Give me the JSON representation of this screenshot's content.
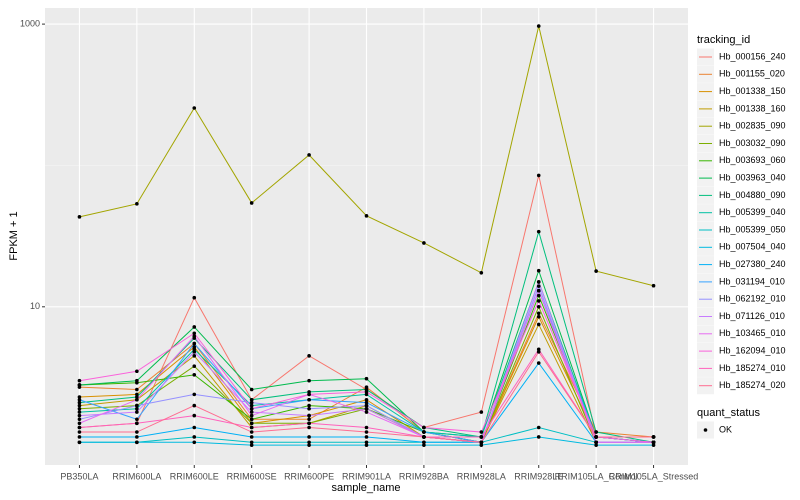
{
  "chart_data": {
    "type": "line",
    "x_label": "sample_name",
    "y_label": "FPKM + 1",
    "categories": [
      "PB350LA",
      "RRIM600LA",
      "RRIM600LE",
      "RRIM600SE",
      "RRIM600PE",
      "RRIM901LA",
      "RRIM928BA",
      "RRIM928LA",
      "RRIM928LE",
      "RRIM105LA_Control",
      "RRIM105LA_Stressed"
    ],
    "log_scale": true,
    "ylim": [
      0.76,
      1300
    ],
    "yticks": [
      10,
      1000
    ],
    "grid": true,
    "background": "#ebebeb",
    "point_color": "#000000",
    "legend_title": "tracking_id",
    "legend_position": "right",
    "point_legend": {
      "title": "quant_status",
      "labels": [
        "OK"
      ]
    },
    "series": [
      {
        "name": "Hb_000156_240",
        "color": "#F8766D",
        "values": [
          1.4,
          1.5,
          11.6,
          2.2,
          4.5,
          2.6,
          1.4,
          1.8,
          85,
          1.2,
          1.1
        ]
      },
      {
        "name": "Hb_001155_020",
        "color": "#EA8331",
        "values": [
          2.7,
          2.6,
          5.5,
          1.6,
          1.6,
          2.7,
          1.3,
          1.1,
          9,
          1.3,
          1.2
        ]
      },
      {
        "name": "Hb_001338_150",
        "color": "#D89000",
        "values": [
          2.3,
          2.4,
          5.2,
          1.5,
          1.7,
          2.2,
          1.2,
          1.1,
          8.5,
          1.2,
          1.2
        ]
      },
      {
        "name": "Hb_001338_160",
        "color": "#C09B00",
        "values": [
          2.0,
          2.2,
          4.5,
          1.4,
          1.5,
          2.0,
          1.2,
          1.1,
          7.5,
          1.1,
          1.1
        ]
      },
      {
        "name": "Hb_002835_090",
        "color": "#A3A500",
        "values": [
          43.3,
          53.5,
          255,
          54.3,
          118.6,
          44.0,
          28.3,
          17.4,
          968,
          17.9,
          14.1
        ]
      },
      {
        "name": "Hb_003032_090",
        "color": "#7CAE00",
        "values": [
          1.9,
          2.0,
          3.8,
          1.5,
          1.5,
          1.9,
          1.2,
          1.1,
          10,
          1.1,
          1.1
        ]
      },
      {
        "name": "Hb_003693_060",
        "color": "#39B600",
        "values": [
          2.8,
          2.9,
          3.3,
          1.6,
          2.0,
          1.9,
          1.3,
          1.1,
          12,
          1.2,
          1.1
        ]
      },
      {
        "name": "Hb_003963_040",
        "color": "#00BB4E",
        "values": [
          2.8,
          3.0,
          7.2,
          2.6,
          3.0,
          3.1,
          1.3,
          1.2,
          18,
          1.2,
          1.1
        ]
      },
      {
        "name": "Hb_004880_090",
        "color": "#00BF7D",
        "values": [
          2.1,
          2.3,
          6.0,
          2.2,
          2.5,
          2.6,
          1.4,
          1.2,
          34,
          1.3,
          1.1
        ]
      },
      {
        "name": "Hb_005399_040",
        "color": "#00C1A3",
        "values": [
          1.8,
          1.9,
          5.0,
          2.0,
          2.2,
          2.4,
          1.3,
          1.2,
          15,
          1.2,
          1.1
        ]
      },
      {
        "name": "Hb_005399_050",
        "color": "#00BFC4",
        "values": [
          1.1,
          1.1,
          1.2,
          1.1,
          1.1,
          1.1,
          1.1,
          1.1,
          1.4,
          1.1,
          1.1
        ]
      },
      {
        "name": "Hb_007504_040",
        "color": "#00BAE0",
        "values": [
          1.1,
          1.1,
          1.1,
          1.05,
          1.05,
          1.05,
          1.05,
          1.05,
          1.2,
          1.05,
          1.05
        ]
      },
      {
        "name": "Hb_027380_240",
        "color": "#00B0F6",
        "values": [
          1.2,
          1.2,
          1.4,
          1.2,
          1.2,
          1.2,
          1.1,
          1.1,
          4.0,
          1.1,
          1.1
        ]
      },
      {
        "name": "Hb_031194_010",
        "color": "#35A2FF",
        "values": [
          2.2,
          1.6,
          5.5,
          1.9,
          2.2,
          2.1,
          1.3,
          1.1,
          13,
          1.2,
          1.1
        ]
      },
      {
        "name": "Hb_062192_010",
        "color": "#9590FF",
        "values": [
          1.6,
          2.0,
          2.4,
          2.1,
          1.9,
          2.0,
          1.2,
          1.1,
          14,
          1.1,
          1.1
        ]
      },
      {
        "name": "Hb_071126_010",
        "color": "#C77CFF",
        "values": [
          1.7,
          1.8,
          4.8,
          1.8,
          1.7,
          1.9,
          1.2,
          1.1,
          15,
          1.1,
          1.1
        ]
      },
      {
        "name": "Hb_103465_010",
        "color": "#E76BF3",
        "values": [
          1.5,
          2.2,
          6.2,
          1.7,
          2.4,
          1.8,
          1.2,
          1.1,
          13,
          1.1,
          1.1
        ]
      },
      {
        "name": "Hb_162094_010",
        "color": "#FA62DB",
        "values": [
          3.0,
          3.5,
          6.5,
          1.9,
          2.4,
          2.5,
          1.4,
          1.3,
          11,
          1.2,
          1.1
        ]
      },
      {
        "name": "Hb_185274_010",
        "color": "#FF62BC",
        "values": [
          1.4,
          1.5,
          1.7,
          1.4,
          1.5,
          1.4,
          1.2,
          1.2,
          5.0,
          1.2,
          1.2
        ]
      },
      {
        "name": "Hb_185274_020",
        "color": "#FF6C91",
        "values": [
          1.3,
          1.3,
          2.0,
          1.3,
          1.4,
          1.3,
          1.2,
          1.1,
          4.8,
          1.2,
          1.2
        ]
      }
    ]
  }
}
